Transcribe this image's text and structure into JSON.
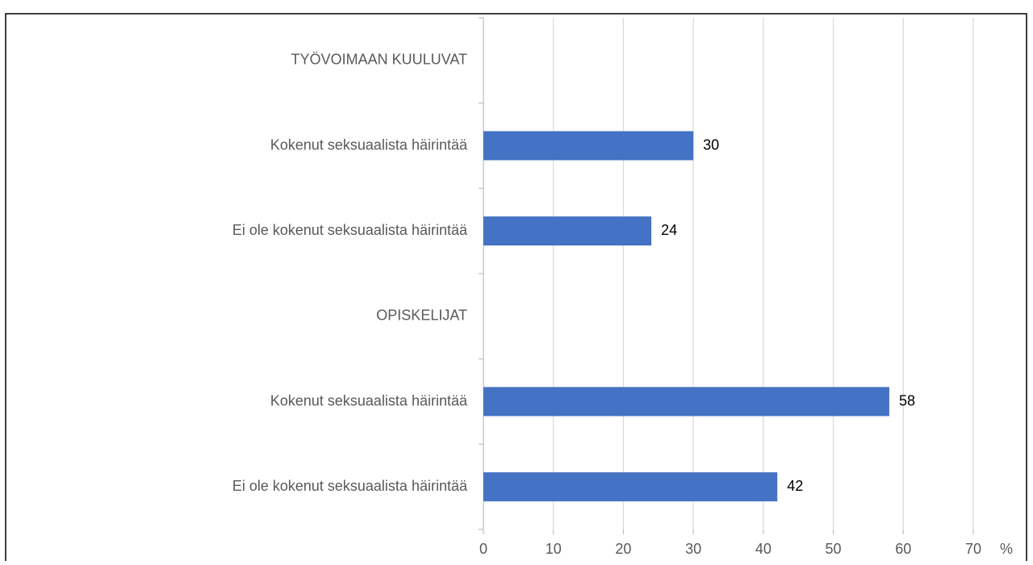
{
  "chart_data": {
    "type": "bar",
    "orientation": "horizontal",
    "categories": [
      "TYÖVOIMAAN KUULUVAT",
      "Kokenut seksuaalista häirintää",
      "Ei ole kokenut seksuaalista häirintää",
      "OPISKELIJAT",
      "Kokenut seksuaalista häirintää",
      "Ei ole kokenut seksuaalista häirintää"
    ],
    "values": [
      null,
      30,
      24,
      null,
      58,
      42
    ],
    "color": "#4472c4",
    "x_label": "%",
    "xlim": [
      0,
      70
    ],
    "xticks": [
      0,
      10,
      20,
      30,
      40,
      50,
      60,
      70
    ],
    "grid": true
  }
}
